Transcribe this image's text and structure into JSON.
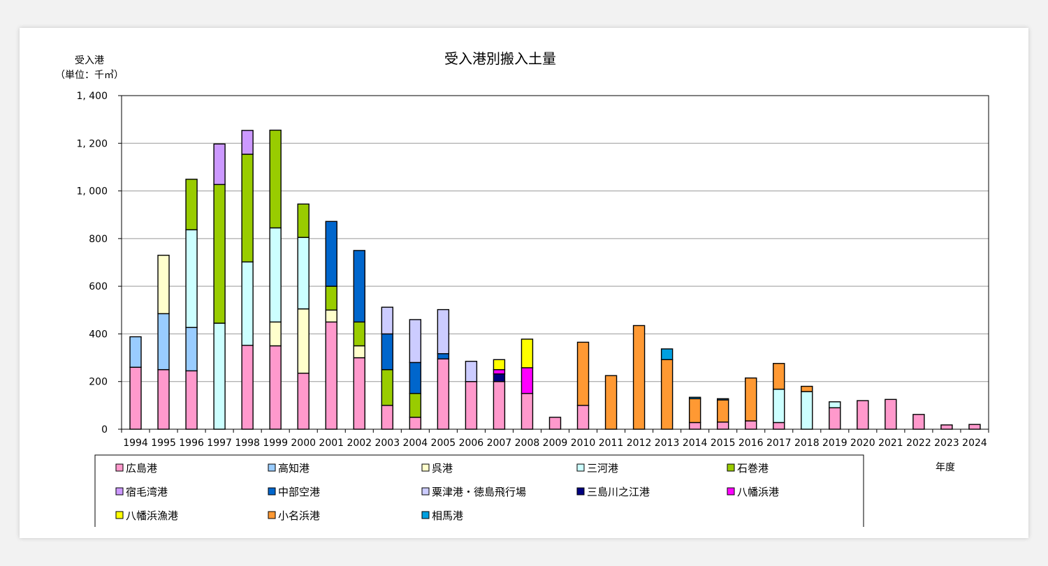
{
  "chart_data": {
    "type": "bar",
    "stacked": true,
    "title": "受入港別搬入土量",
    "ylabel_line1": "受入港",
    "ylabel_line2": "（単位：千㎥）",
    "xlabel": "年度",
    "ylim": [
      0,
      1400
    ],
    "yticks": [
      0,
      200,
      400,
      600,
      800,
      1000,
      1200,
      1400
    ],
    "ytick_labels": [
      "0",
      "200",
      "400",
      "600",
      "800",
      "1, 000",
      "1, 200",
      "1, 400"
    ],
    "grid": true,
    "legend_position": "bottom",
    "categories": [
      "1994",
      "1995",
      "1996",
      "1997",
      "1998",
      "1999",
      "2000",
      "2001",
      "2002",
      "2003",
      "2004",
      "2005",
      "2006",
      "2007",
      "2008",
      "2009",
      "2010",
      "2011",
      "2012",
      "2013",
      "2014",
      "2015",
      "2016",
      "2017",
      "2018",
      "2019",
      "2020",
      "2021",
      "2022",
      "2023",
      "2024"
    ],
    "series": [
      {
        "name": "広島港",
        "color": "#ff99cc",
        "values": [
          260,
          250,
          245,
          0,
          352,
          350,
          235,
          450,
          300,
          100,
          50,
          295,
          200,
          200,
          150,
          50,
          100,
          0,
          0,
          0,
          28,
          30,
          35,
          28,
          0,
          90,
          120,
          125,
          62,
          18,
          20
        ]
      },
      {
        "name": "高知港",
        "color": "#99ccff",
        "values": [
          128,
          235,
          182,
          0,
          0,
          0,
          0,
          0,
          0,
          0,
          0,
          0,
          0,
          0,
          0,
          0,
          0,
          0,
          0,
          0,
          0,
          0,
          0,
          0,
          0,
          0,
          0,
          0,
          0,
          0,
          0
        ]
      },
      {
        "name": "呉港",
        "color": "#ffffcc",
        "values": [
          0,
          245,
          0,
          0,
          0,
          100,
          270,
          50,
          50,
          0,
          0,
          0,
          0,
          0,
          0,
          0,
          0,
          0,
          0,
          0,
          0,
          0,
          0,
          0,
          0,
          0,
          0,
          0,
          0,
          0,
          0
        ]
      },
      {
        "name": "三河港",
        "color": "#ccffff",
        "values": [
          0,
          0,
          410,
          445,
          350,
          395,
          300,
          0,
          0,
          0,
          0,
          0,
          0,
          0,
          0,
          0,
          0,
          0,
          0,
          0,
          0,
          0,
          0,
          140,
          158,
          25,
          0,
          0,
          0,
          0,
          0
        ]
      },
      {
        "name": "石巻港",
        "color": "#99cc00",
        "values": [
          0,
          0,
          212,
          582,
          452,
          410,
          140,
          100,
          100,
          150,
          100,
          0,
          0,
          0,
          0,
          0,
          0,
          0,
          0,
          0,
          0,
          0,
          0,
          0,
          0,
          0,
          0,
          0,
          0,
          0,
          0
        ]
      },
      {
        "name": "宿毛湾港",
        "color": "#cc99ff",
        "values": [
          0,
          0,
          0,
          170,
          100,
          0,
          0,
          0,
          0,
          0,
          0,
          0,
          0,
          0,
          0,
          0,
          0,
          0,
          0,
          0,
          0,
          0,
          0,
          0,
          0,
          0,
          0,
          0,
          0,
          0,
          0
        ]
      },
      {
        "name": "中部空港",
        "color": "#0066cc",
        "values": [
          0,
          0,
          0,
          0,
          0,
          0,
          0,
          272,
          300,
          150,
          130,
          22,
          0,
          0,
          0,
          0,
          0,
          0,
          0,
          0,
          0,
          0,
          0,
          0,
          0,
          0,
          0,
          0,
          0,
          0,
          0
        ]
      },
      {
        "name": "粟津港・徳島飛行場",
        "color": "#ccccff",
        "values": [
          0,
          0,
          0,
          0,
          0,
          0,
          0,
          0,
          0,
          112,
          180,
          185,
          85,
          0,
          0,
          0,
          0,
          0,
          0,
          0,
          0,
          0,
          0,
          0,
          0,
          0,
          0,
          0,
          0,
          0,
          0
        ]
      },
      {
        "name": "三島川之江港",
        "color": "#000080",
        "values": [
          0,
          0,
          0,
          0,
          0,
          0,
          0,
          0,
          0,
          0,
          0,
          0,
          0,
          32,
          0,
          0,
          0,
          0,
          0,
          0,
          0,
          0,
          0,
          0,
          0,
          0,
          0,
          0,
          0,
          0,
          0
        ]
      },
      {
        "name": "八幡浜港",
        "color": "#ff00ff",
        "values": [
          0,
          0,
          0,
          0,
          0,
          0,
          0,
          0,
          0,
          0,
          0,
          0,
          0,
          18,
          108,
          0,
          0,
          0,
          0,
          0,
          0,
          0,
          0,
          0,
          0,
          0,
          0,
          0,
          0,
          0,
          0
        ]
      },
      {
        "name": "八幡浜漁港",
        "color": "#ffff00",
        "values": [
          0,
          0,
          0,
          0,
          0,
          0,
          0,
          0,
          0,
          0,
          0,
          0,
          0,
          42,
          120,
          0,
          0,
          0,
          0,
          0,
          0,
          0,
          0,
          0,
          0,
          0,
          0,
          0,
          0,
          0,
          0
        ]
      },
      {
        "name": "小名浜港",
        "color": "#ff9933",
        "values": [
          0,
          0,
          0,
          0,
          0,
          0,
          0,
          0,
          0,
          0,
          0,
          0,
          0,
          0,
          0,
          0,
          265,
          225,
          435,
          292,
          100,
          93,
          180,
          108,
          22,
          0,
          0,
          0,
          0,
          0,
          0
        ]
      },
      {
        "name": "相馬港",
        "color": "#00a0e0",
        "values": [
          0,
          0,
          0,
          0,
          0,
          0,
          0,
          0,
          0,
          0,
          0,
          0,
          0,
          0,
          0,
          0,
          0,
          0,
          0,
          45,
          6,
          5,
          0,
          0,
          0,
          0,
          0,
          0,
          0,
          0,
          0
        ]
      }
    ]
  }
}
